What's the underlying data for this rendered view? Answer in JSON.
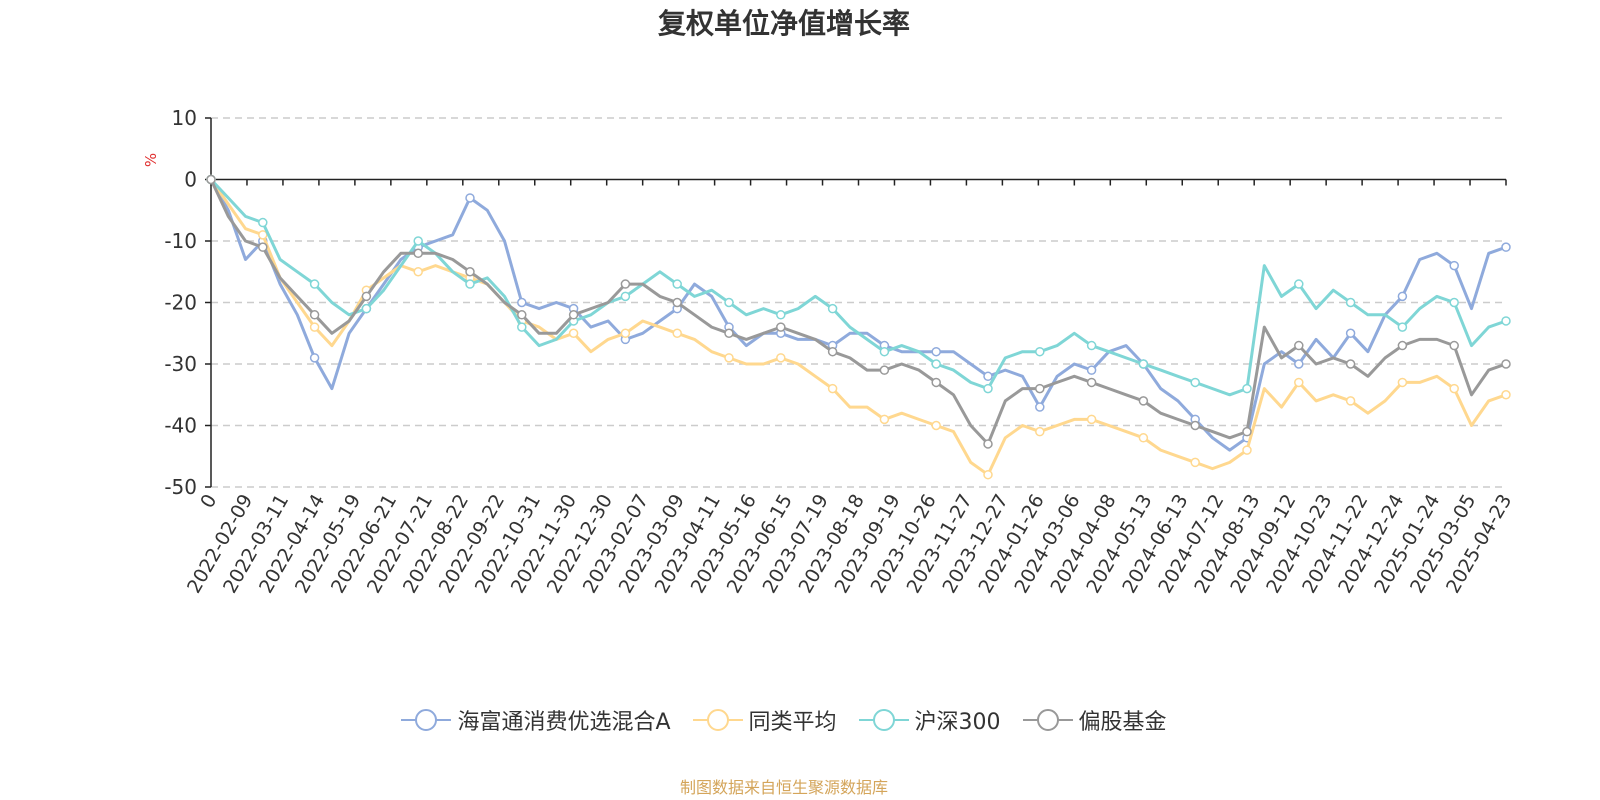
{
  "colors": {
    "series": [
      "#8FAADC",
      "#FFD88F",
      "#7FD6D6",
      "#999999"
    ],
    "axis": "#222222",
    "grid": "#cccccc",
    "ylabel": "#e03030",
    "footer": "#d4a55a"
  },
  "footer": {
    "text": "制图数据来自恒生聚源数据库"
  },
  "chart_data": {
    "type": "line",
    "title": "复权单位净值增长率",
    "xlabel": "",
    "ylabel": "%",
    "ylim": [
      -50,
      10
    ],
    "yticks": [
      10,
      0,
      -10,
      -20,
      -30,
      -40,
      -50
    ],
    "grid": true,
    "legend_position": "bottom",
    "x_tick_labels": [
      "0",
      "2022-02-09",
      "2022-03-11",
      "2022-04-14",
      "2022-05-19",
      "2022-06-21",
      "2022-07-21",
      "2022-08-22",
      "2022-09-22",
      "2022-10-31",
      "2022-11-30",
      "2022-12-30",
      "2023-02-07",
      "2023-03-09",
      "2023-04-11",
      "2023-05-16",
      "2023-06-15",
      "2023-07-19",
      "2023-08-18",
      "2023-09-19",
      "2023-10-26",
      "2023-11-27",
      "2023-12-27",
      "2024-01-26",
      "2024-03-06",
      "2024-04-08",
      "2024-05-13",
      "2024-06-13",
      "2024-07-12",
      "2024-08-13",
      "2024-09-12",
      "2024-10-23",
      "2024-11-22",
      "2024-12-24",
      "2025-01-24",
      "2025-03-05",
      "2025-04-23"
    ],
    "series": [
      {
        "name": "海富通消费优选混合A",
        "values": [
          0,
          -5,
          -13,
          -10,
          -17,
          -22,
          -29,
          -34,
          -25,
          -21,
          -17,
          -13,
          -11,
          -10,
          -9,
          -3,
          -5,
          -10,
          -20,
          -21,
          -20,
          -21,
          -24,
          -23,
          -26,
          -25,
          -23,
          -21,
          -17,
          -19,
          -24,
          -27,
          -25,
          -25,
          -26,
          -26,
          -27,
          -25,
          -25,
          -27,
          -28,
          -28,
          -28,
          -28,
          -30,
          -32,
          -31,
          -32,
          -37,
          -32,
          -30,
          -31,
          -28,
          -27,
          -30,
          -34,
          -36,
          -39,
          -42,
          -44,
          -42,
          -30,
          -28,
          -30,
          -26,
          -29,
          -25,
          -28,
          -22,
          -19,
          -13,
          -12,
          -14,
          -21,
          -12,
          -11
        ]
      },
      {
        "name": "同类平均",
        "values": [
          0,
          -4,
          -8,
          -9,
          -16,
          -20,
          -24,
          -27,
          -23,
          -18,
          -16,
          -14,
          -15,
          -14,
          -15,
          -16,
          -17,
          -20,
          -23,
          -24,
          -26,
          -25,
          -28,
          -26,
          -25,
          -23,
          -24,
          -25,
          -26,
          -28,
          -29,
          -30,
          -30,
          -29,
          -30,
          -32,
          -34,
          -37,
          -37,
          -39,
          -38,
          -39,
          -40,
          -41,
          -46,
          -48,
          -42,
          -40,
          -41,
          -40,
          -39,
          -39,
          -40,
          -41,
          -42,
          -44,
          -45,
          -46,
          -47,
          -46,
          -44,
          -34,
          -37,
          -33,
          -36,
          -35,
          -36,
          -38,
          -36,
          -33,
          -33,
          -32,
          -34,
          -40,
          -36,
          -35
        ]
      },
      {
        "name": "沪深300",
        "values": [
          0,
          -3,
          -6,
          -7,
          -13,
          -15,
          -17,
          -20,
          -22,
          -21,
          -18,
          -14,
          -10,
          -12,
          -15,
          -17,
          -16,
          -19,
          -24,
          -27,
          -26,
          -23,
          -22,
          -20,
          -19,
          -17,
          -15,
          -17,
          -19,
          -18,
          -20,
          -22,
          -21,
          -22,
          -21,
          -19,
          -21,
          -24,
          -26,
          -28,
          -27,
          -28,
          -30,
          -31,
          -33,
          -34,
          -29,
          -28,
          -28,
          -27,
          -25,
          -27,
          -28,
          -29,
          -30,
          -31,
          -32,
          -33,
          -34,
          -35,
          -34,
          -14,
          -19,
          -17,
          -21,
          -18,
          -20,
          -22,
          -22,
          -24,
          -21,
          -19,
          -20,
          -27,
          -24,
          -23
        ]
      },
      {
        "name": "偏股基金",
        "values": [
          0,
          -6,
          -10,
          -11,
          -16,
          -19,
          -22,
          -25,
          -23,
          -19,
          -15,
          -12,
          -12,
          -12,
          -13,
          -15,
          -17,
          -20,
          -22,
          -25,
          -25,
          -22,
          -21,
          -20,
          -17,
          -17,
          -19,
          -20,
          -22,
          -24,
          -25,
          -26,
          -25,
          -24,
          -25,
          -26,
          -28,
          -29,
          -31,
          -31,
          -30,
          -31,
          -33,
          -35,
          -40,
          -43,
          -36,
          -34,
          -34,
          -33,
          -32,
          -33,
          -34,
          -35,
          -36,
          -38,
          -39,
          -40,
          -41,
          -42,
          -41,
          -24,
          -29,
          -27,
          -30,
          -29,
          -30,
          -32,
          -29,
          -27,
          -26,
          -26,
          -27,
          -35,
          -31,
          -30
        ]
      }
    ]
  }
}
